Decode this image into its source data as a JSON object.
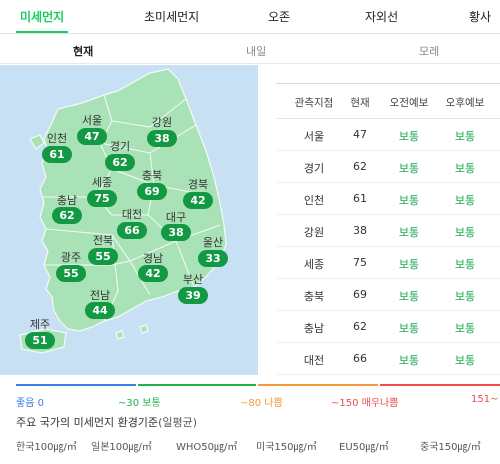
{
  "main_tabs": [
    "미세먼지",
    "초미세먼지",
    "오존",
    "자외선",
    "황사"
  ],
  "sub_tabs": [
    "현재",
    "내일",
    "모레"
  ],
  "map": {
    "regions": [
      {
        "name": "서울",
        "value": "47"
      },
      {
        "name": "강원",
        "value": "38"
      },
      {
        "name": "인천",
        "value": "61"
      },
      {
        "name": "경기",
        "value": "62"
      },
      {
        "name": "세종",
        "value": "75"
      },
      {
        "name": "충북",
        "value": "69"
      },
      {
        "name": "경북",
        "value": "42"
      },
      {
        "name": "충남",
        "value": "62"
      },
      {
        "name": "대전",
        "value": "66"
      },
      {
        "name": "대구",
        "value": "38"
      },
      {
        "name": "전북",
        "value": "55"
      },
      {
        "name": "울산",
        "value": "33"
      },
      {
        "name": "광주",
        "value": "55"
      },
      {
        "name": "경남",
        "value": "42"
      },
      {
        "name": "부산",
        "value": "39"
      },
      {
        "name": "전남",
        "value": "44"
      },
      {
        "name": "제주",
        "value": "51"
      }
    ]
  },
  "table": {
    "headers": [
      "관측지점",
      "현재",
      "오전예보",
      "오후예보"
    ],
    "rows": [
      [
        "서울",
        "47",
        "보통",
        "보통"
      ],
      [
        "경기",
        "62",
        "보통",
        "보통"
      ],
      [
        "인천",
        "61",
        "보통",
        "보통"
      ],
      [
        "강원",
        "38",
        "보통",
        "보통"
      ],
      [
        "세종",
        "75",
        "보통",
        "보통"
      ],
      [
        "충북",
        "69",
        "보통",
        "보통"
      ],
      [
        "충남",
        "62",
        "보통",
        "보통"
      ],
      [
        "대전",
        "66",
        "보통",
        "보통"
      ]
    ]
  },
  "scale": [
    {
      "label": "좋음 0",
      "color": "#3a7ee8"
    },
    {
      "label": "~30 보통",
      "color": "#1fb54c"
    },
    {
      "label": "~80 나쁨",
      "color": "#f59a3c"
    },
    {
      "label": "~150 매우나쁨",
      "color": "#ef4c4c"
    },
    {
      "label": "151~",
      "color": "#ef4c4c"
    }
  ],
  "standards": {
    "title": "주요 국가의 미세먼지 환경기준",
    "subtitle": "(일평균)",
    "items": [
      "한국100㎍/㎥",
      "일본100㎍/㎥",
      "WHO50㎍/㎥",
      "미국150㎍/㎥",
      "EU50㎍/㎥",
      "중국150㎍/㎥"
    ]
  },
  "colors": {
    "accent": "#19ce60",
    "badge": "#139844",
    "land": "#a8e2b6",
    "sea": "#c7e0f3",
    "good_text": "#18a94f"
  }
}
